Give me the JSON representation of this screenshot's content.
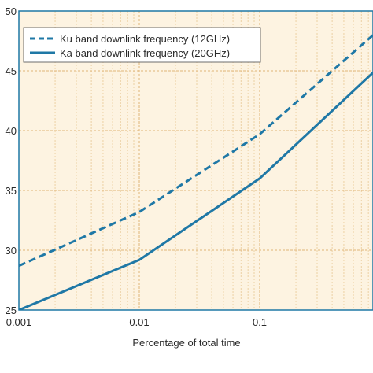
{
  "chart_data": {
    "type": "line",
    "title": "",
    "xlabel": "Percentage of total time",
    "ylabel": "",
    "x_scale": "log",
    "xlim": [
      0.001,
      1
    ],
    "ylim": [
      25,
      50
    ],
    "x_ticks": [
      {
        "value": 0.001,
        "label": "0.001"
      },
      {
        "value": 0.01,
        "label": "0.01"
      },
      {
        "value": 0.1,
        "label": "0.1"
      }
    ],
    "y_ticks": [
      {
        "value": 25,
        "label": "25"
      },
      {
        "value": 30,
        "label": "30"
      },
      {
        "value": 35,
        "label": "35"
      },
      {
        "value": 40,
        "label": "40"
      },
      {
        "value": 45,
        "label": "45"
      },
      {
        "value": 50,
        "label": "50"
      }
    ],
    "grid": true,
    "legend_position": "top-left",
    "series": [
      {
        "name": "Ku band downlink frequency (12GHz)",
        "line_style": "dashed",
        "color": "#1f78a6",
        "points": [
          [
            0.001,
            28.7
          ],
          [
            0.01,
            33.2
          ],
          [
            0.1,
            39.7
          ],
          [
            1,
            48.5
          ]
        ]
      },
      {
        "name": "Ka band downlink frequency (20GHz)",
        "line_style": "solid",
        "color": "#1f78a6",
        "points": [
          [
            0.001,
            25.0
          ],
          [
            0.01,
            29.2
          ],
          [
            0.1,
            36.0
          ],
          [
            1,
            45.4
          ]
        ]
      }
    ]
  },
  "colors": {
    "plot_background": "#fdf3e1",
    "grid_major": "#e0b478",
    "grid_minor": "#ecd0a4",
    "axis": "#1f78a6",
    "text": "#2a2a2a"
  }
}
